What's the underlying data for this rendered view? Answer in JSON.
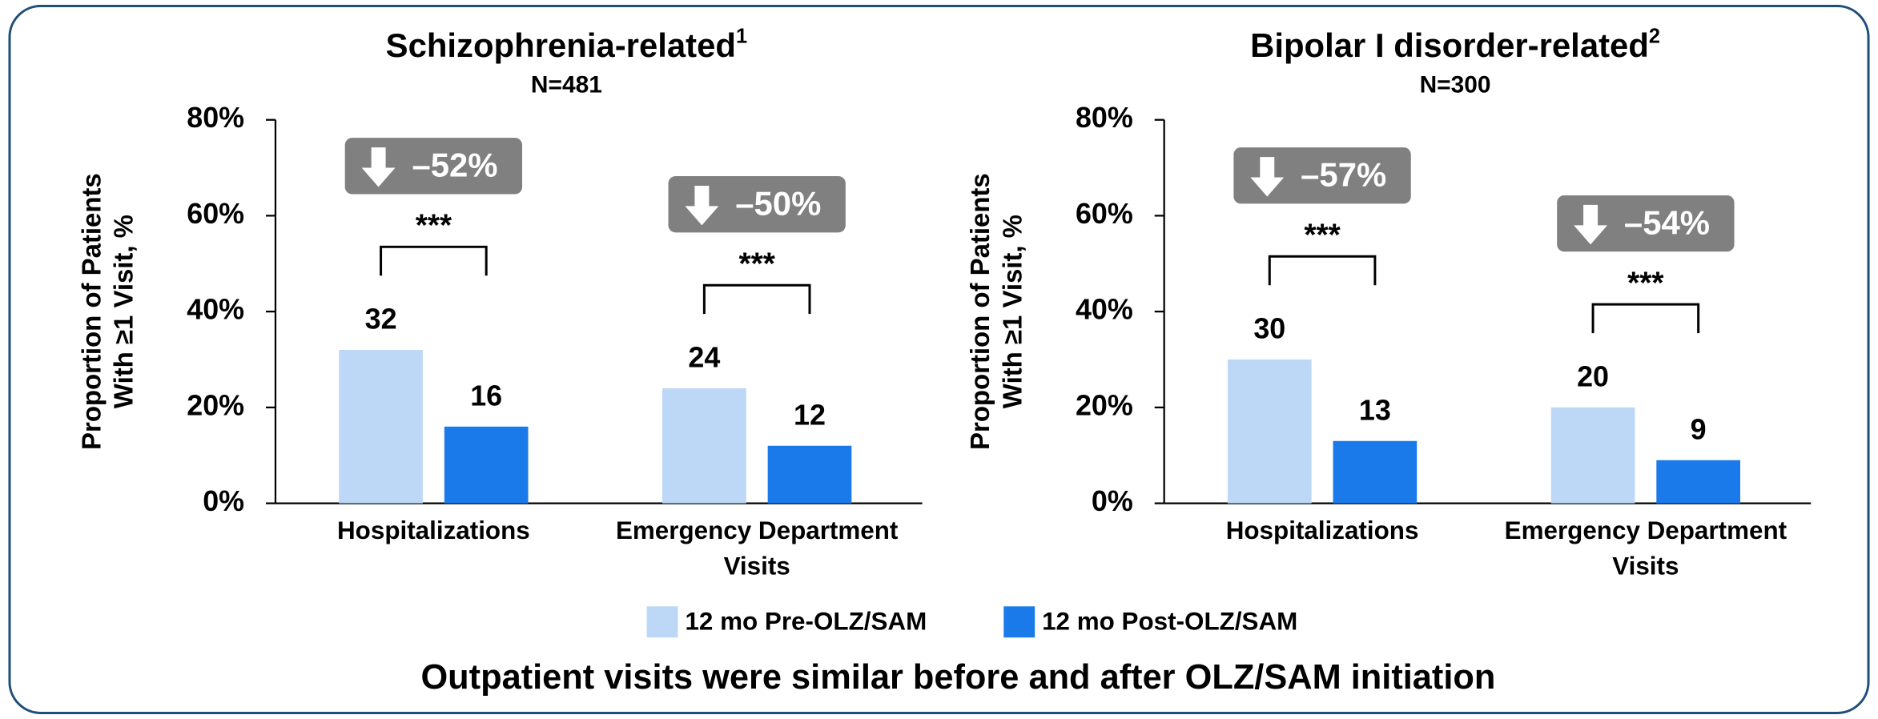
{
  "chart_data": [
    {
      "type": "bar",
      "title": "Schizophrenia-related",
      "title_note": "1",
      "subtitle": "N=481",
      "ylabel": [
        "Proportion of Patients",
        "With ≥1 Visit, %"
      ],
      "categories": [
        [
          "Hospitalizations"
        ],
        [
          "Emergency Department",
          "Visits"
        ]
      ],
      "series": [
        {
          "name": "12 mo Pre-OLZ/SAM",
          "color": "#bdd7f7",
          "values": [
            32,
            24
          ]
        },
        {
          "name": "12 mo Post-OLZ/SAM",
          "color": "#1b7aea",
          "values": [
            16,
            12
          ]
        }
      ],
      "annotations": [
        {
          "label": "–52%",
          "stars": "***"
        },
        {
          "label": "–50%",
          "stars": "***"
        }
      ],
      "ylim": [
        0,
        80
      ],
      "yticks": [
        {
          "value": 0,
          "label": "0%"
        },
        {
          "value": 20,
          "label": "20%"
        },
        {
          "value": 40,
          "label": "40%"
        },
        {
          "value": 60,
          "label": "60%"
        },
        {
          "value": 80,
          "label": "80%"
        }
      ]
    },
    {
      "type": "bar",
      "title": "Bipolar I disorder-related",
      "title_note": "2",
      "subtitle": "N=300",
      "ylabel": [
        "Proportion of Patients",
        "With ≥1 Visit, %"
      ],
      "categories": [
        [
          "Hospitalizations"
        ],
        [
          "Emergency Department",
          "Visits"
        ]
      ],
      "series": [
        {
          "name": "12 mo Pre-OLZ/SAM",
          "color": "#bdd7f7",
          "values": [
            30,
            20
          ]
        },
        {
          "name": "12 mo Post-OLZ/SAM",
          "color": "#1b7aea",
          "values": [
            13,
            9
          ]
        }
      ],
      "annotations": [
        {
          "label": "–57%",
          "stars": "***"
        },
        {
          "label": "–54%",
          "stars": "***"
        }
      ],
      "ylim": [
        0,
        80
      ],
      "yticks": [
        {
          "value": 0,
          "label": "0%"
        },
        {
          "value": 20,
          "label": "20%"
        },
        {
          "value": 40,
          "label": "40%"
        },
        {
          "value": 60,
          "label": "60%"
        },
        {
          "value": 80,
          "label": "80%"
        }
      ]
    }
  ],
  "footer": "Outpatient visits were similar before and after OLZ/SAM initiation"
}
